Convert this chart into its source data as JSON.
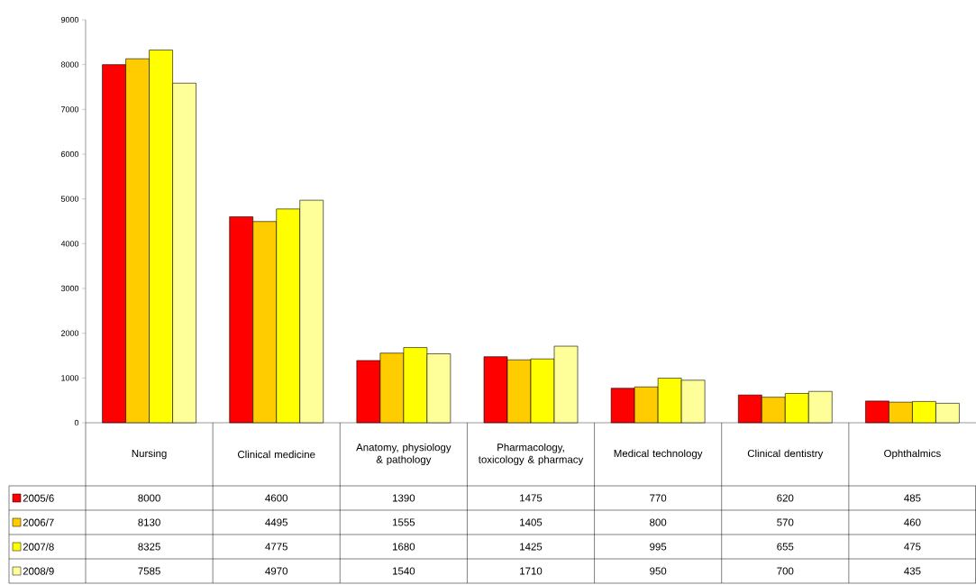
{
  "chart_data": {
    "type": "bar",
    "categories": [
      "Nursing",
      "Clinical medicine",
      "Anatomy, physiology & pathology",
      "Pharmacology, toxicology & pharmacy",
      "Medical technology",
      "Clinical dentistry",
      "Ophthalmics"
    ],
    "series": [
      {
        "name": "2005/6",
        "color": "#ff0000",
        "values": [
          8000,
          4600,
          1390,
          1475,
          770,
          620,
          485
        ]
      },
      {
        "name": "2006/7",
        "color": "#ffcc00",
        "values": [
          8130,
          4495,
          1555,
          1405,
          800,
          570,
          460
        ]
      },
      {
        "name": "2007/8",
        "color": "#ffff00",
        "values": [
          8325,
          4775,
          1680,
          1425,
          995,
          655,
          475
        ]
      },
      {
        "name": "2008/9",
        "color": "#ffff99",
        "values": [
          7585,
          4970,
          1540,
          1710,
          950,
          700,
          435
        ]
      }
    ],
    "ylim": [
      0,
      9000
    ],
    "yticks": [
      0,
      1000,
      2000,
      3000,
      4000,
      5000,
      6000,
      7000,
      8000,
      9000
    ],
    "data_labels": true,
    "legend": "bottom left"
  }
}
